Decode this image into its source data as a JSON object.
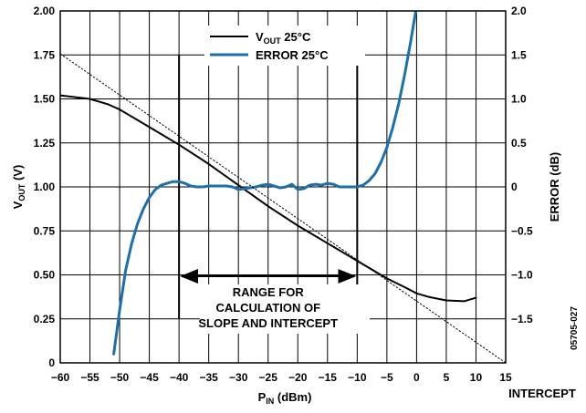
{
  "chart_data": {
    "type": "line",
    "x_axis": {
      "label_main": "P",
      "label_sub": "IN",
      "label_unit": " (dBm)",
      "range": [
        -60,
        15
      ],
      "ticks": [
        -60,
        -55,
        -50,
        -45,
        -40,
        -35,
        -30,
        -25,
        -20,
        -15,
        -10,
        -5,
        0,
        5,
        10,
        15
      ],
      "tick_labels": [
        "−60",
        "−55",
        "−50",
        "−45",
        "−40",
        "−35",
        "−30",
        "−25",
        "−20",
        "−15",
        "−10",
        "−5",
        "0",
        "5",
        "10",
        "15"
      ],
      "extra_label": "INTERCEPT",
      "grid": true
    },
    "y_left": {
      "label_main": "V",
      "label_sub": "OUT",
      "label_unit": " (V)",
      "range": [
        0,
        2
      ],
      "ticks": [
        0,
        0.25,
        0.5,
        0.75,
        1.0,
        1.25,
        1.5,
        1.75,
        2.0
      ],
      "tick_labels": [
        "0",
        "0.25",
        "0.50",
        "0.75",
        "1.00",
        "1.25",
        "1.50",
        "1.75",
        "2.00"
      ]
    },
    "y_right": {
      "label": "ERROR (dB)",
      "range": [
        -2,
        2
      ],
      "ticks": [
        -1.5,
        -1.0,
        -0.5,
        0,
        0.5,
        1.0,
        1.5,
        2.0
      ],
      "tick_labels": [
        "−1.5",
        "−1.0",
        "−0.5",
        "0",
        "0.5",
        "1.0",
        "1.5",
        "2.0"
      ]
    },
    "legend": {
      "placement": "top-center",
      "items": [
        {
          "name_main": "V",
          "name_sub": "OUT",
          "name_rest": " 25°C",
          "color": "#000000"
        },
        {
          "name_main": "ERROR  25°C",
          "name_sub": "",
          "name_rest": "",
          "color": "#1f6fa8"
        }
      ]
    },
    "series": [
      {
        "name": "VOUT 25°C",
        "axis": "left",
        "color": "#000000",
        "x": [
          -60,
          -55,
          -52,
          -50,
          -48,
          -45,
          -42,
          -40,
          -35,
          -30,
          -25,
          -20,
          -15,
          -10,
          -5,
          -2,
          0,
          2,
          5,
          8,
          10
        ],
        "y": [
          1.52,
          1.5,
          1.47,
          1.44,
          1.4,
          1.34,
          1.28,
          1.24,
          1.13,
          1.01,
          0.89,
          0.78,
          0.68,
          0.58,
          0.48,
          0.43,
          0.395,
          0.375,
          0.355,
          0.35,
          0.37
        ]
      },
      {
        "name": "ERROR 25°C",
        "axis": "right",
        "color": "#1f6fa8",
        "x": [
          -51,
          -50,
          -49,
          -48,
          -47,
          -46,
          -45,
          -44,
          -43,
          -42,
          -41,
          -40,
          -39,
          -38,
          -37,
          -36,
          -35,
          -34,
          -33,
          -32,
          -31,
          -30,
          -29,
          -28,
          -27,
          -26,
          -25,
          -24,
          -23,
          -22,
          -21,
          -20,
          -19,
          -18,
          -17,
          -16,
          -15,
          -14,
          -13,
          -12,
          -11,
          -10,
          -9,
          -8,
          -7,
          -6,
          -5,
          -4,
          -3,
          -2,
          -1,
          -0.5,
          0
        ],
        "y": [
          -1.9,
          -1.4,
          -0.95,
          -0.65,
          -0.42,
          -0.25,
          -0.12,
          -0.03,
          0.02,
          0.04,
          0.06,
          0.06,
          0.04,
          0.01,
          0.0,
          0.0,
          0.01,
          0.01,
          0.01,
          0.01,
          0.0,
          -0.03,
          -0.02,
          -0.01,
          0.0,
          0.02,
          0.03,
          0.01,
          -0.01,
          0.0,
          0.03,
          -0.03,
          -0.02,
          0.02,
          0.03,
          0.02,
          0.04,
          0.03,
          0.0,
          0.0,
          0.0,
          0.0,
          0.02,
          0.07,
          0.15,
          0.28,
          0.45,
          0.68,
          0.95,
          1.28,
          1.65,
          1.85,
          2.05
        ]
      },
      {
        "name": "slope line",
        "axis": "left",
        "style": "dotted",
        "color": "#000000",
        "x": [
          -64,
          15
        ],
        "y": [
          1.85,
          0.0
        ]
      }
    ],
    "markers": {
      "vertical_lines": [
        -40,
        -10
      ],
      "range_arrow": [
        -40,
        -10
      ],
      "annotation_lines": [
        "RANGE FOR",
        "CALCULATION OF",
        "SLOPE AND INTERCEPT"
      ]
    },
    "side_code": "05705-027"
  }
}
